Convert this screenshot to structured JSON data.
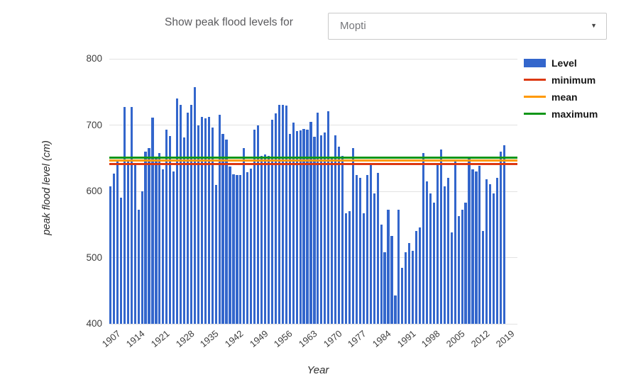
{
  "header": {
    "label": "Show peak flood levels for",
    "dropdown": {
      "value": "Mopti",
      "arrow": "▼"
    }
  },
  "chart_data": {
    "type": "bar",
    "title": "",
    "xlabel": "Year",
    "ylabel": "peak flood level (cm)",
    "ylim": [
      400,
      800
    ],
    "yticks": [
      400,
      500,
      600,
      700,
      800
    ],
    "xticks": [
      1907,
      1914,
      1921,
      1928,
      1935,
      1942,
      1949,
      1956,
      1963,
      1970,
      1977,
      1984,
      1991,
      1998,
      2005,
      2012,
      2019
    ],
    "grid": true,
    "legend_position": "right",
    "years": [
      1907,
      1908,
      1909,
      1910,
      1911,
      1912,
      1913,
      1914,
      1915,
      1916,
      1917,
      1918,
      1919,
      1920,
      1921,
      1922,
      1923,
      1924,
      1925,
      1926,
      1927,
      1928,
      1929,
      1930,
      1931,
      1932,
      1933,
      1934,
      1935,
      1936,
      1937,
      1938,
      1939,
      1940,
      1941,
      1942,
      1943,
      1944,
      1945,
      1946,
      1947,
      1948,
      1949,
      1950,
      1951,
      1952,
      1953,
      1954,
      1955,
      1956,
      1957,
      1958,
      1959,
      1960,
      1961,
      1962,
      1963,
      1964,
      1965,
      1966,
      1967,
      1968,
      1969,
      1970,
      1971,
      1972,
      1973,
      1974,
      1975,
      1976,
      1977,
      1978,
      1979,
      1980,
      1981,
      1982,
      1983,
      1984,
      1985,
      1986,
      1987,
      1988,
      1989,
      1990,
      1991,
      1992,
      1993,
      1994,
      1995,
      1996,
      1997,
      1998,
      1999,
      2000,
      2001,
      2002,
      2003,
      2004,
      2005,
      2006,
      2007,
      2008,
      2009,
      2010,
      2011,
      2012,
      2013,
      2014,
      2015,
      2016,
      2017,
      2018,
      2019
    ],
    "series": [
      {
        "name": "Level",
        "color": "#3366CC",
        "values": [
          607,
          627,
          648,
          590,
          727,
          645,
          727,
          640,
          572,
          600,
          660,
          665,
          711,
          651,
          658,
          633,
          693,
          683,
          630,
          740,
          730,
          681,
          719,
          731,
          757,
          700,
          712,
          710,
          712,
          696,
          610,
          716,
          687,
          678,
          637,
          626,
          625,
          625,
          665,
          629,
          634,
          693,
          699,
          654,
          656,
          653,
          708,
          718,
          730,
          731,
          729,
          687,
          704,
          691,
          692,
          694,
          693,
          705,
          682,
          719,
          685,
          689,
          721,
          652,
          685,
          667,
          653,
          567,
          570,
          665,
          625,
          620,
          567,
          625,
          640,
          597,
          628,
          550,
          508,
          572,
          533,
          443,
          572,
          484,
          508,
          522,
          510,
          540,
          545,
          658,
          615,
          597,
          583,
          643,
          663,
          608,
          620,
          538,
          646,
          563,
          572,
          583,
          650,
          633,
          630,
          638,
          540,
          618,
          611,
          597,
          620,
          660,
          670
        ]
      }
    ],
    "reference_lines": [
      {
        "name": "minimum",
        "value": 641,
        "color": "#DC3912"
      },
      {
        "name": "mean",
        "value": 646,
        "color": "#FF9900"
      },
      {
        "name": "maximum",
        "value": 651,
        "color": "#109618"
      }
    ]
  }
}
